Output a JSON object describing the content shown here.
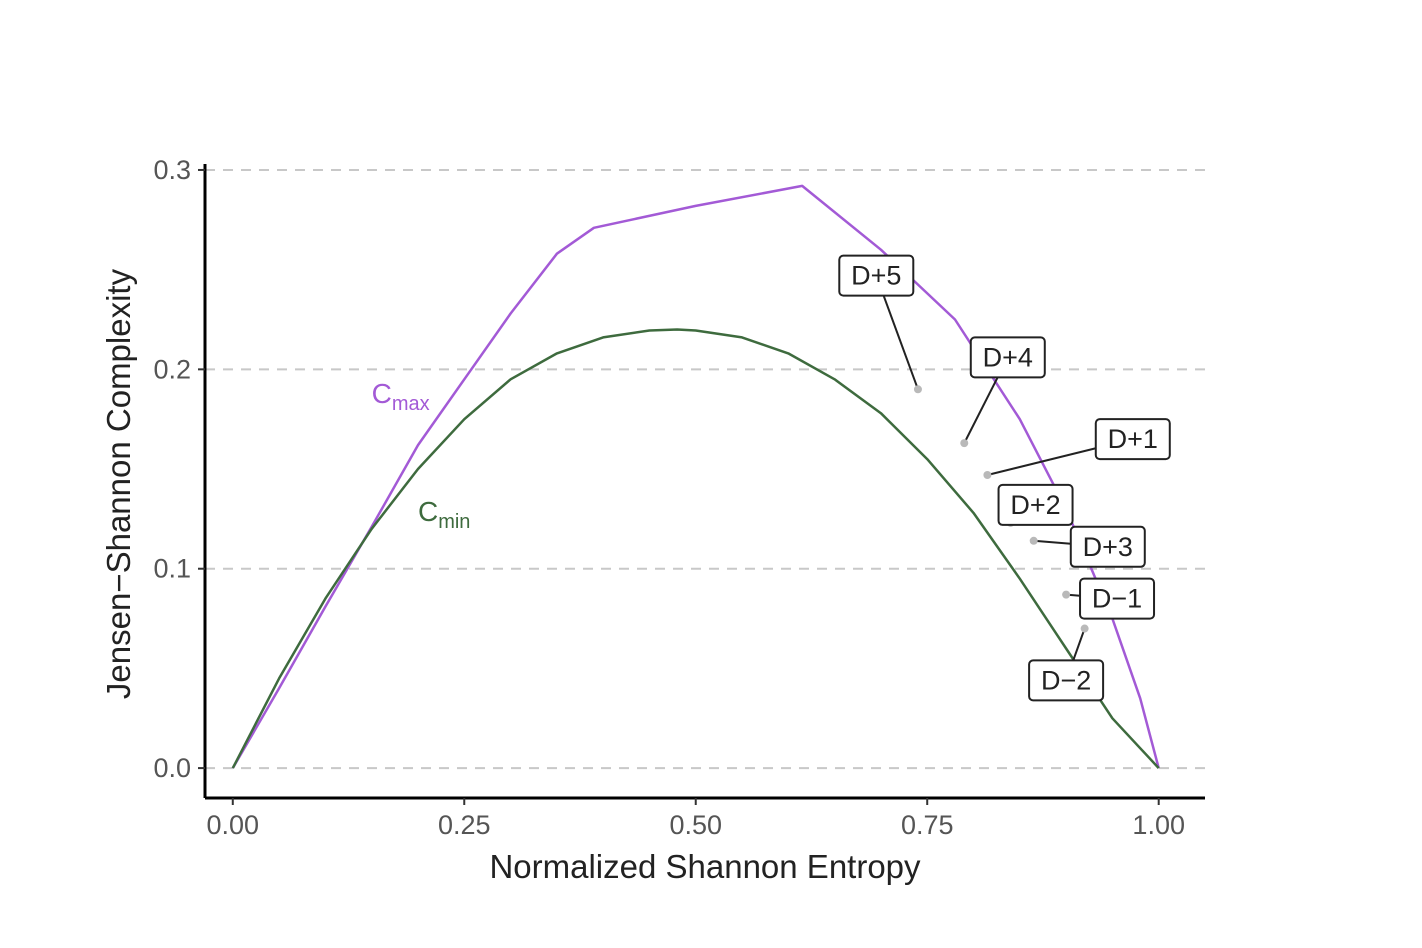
{
  "chart_data": {
    "type": "line",
    "xlabel": "Normalized Shannon Entropy",
    "ylabel": "Jensen−Shannon Complexity",
    "xlim": [
      -0.03,
      1.05
    ],
    "ylim": [
      -0.015,
      0.305
    ],
    "x_ticks": [
      0,
      0.25,
      0.5,
      0.75,
      1.0
    ],
    "x_tick_labels": [
      "0.00",
      "0.25",
      "0.50",
      "0.75",
      "1.00"
    ],
    "y_ticks": [
      0,
      0.1,
      0.2,
      0.3
    ],
    "y_tick_labels": [
      "0.0",
      "0.1",
      "0.2",
      "0.3"
    ],
    "grid": "horizontal dashed",
    "colors": {
      "cmax": "#a35ad6",
      "cmin": "#3e6b3e",
      "grid": "#c8c8c8",
      "axis": "#000000",
      "points": "#b9b9b9"
    },
    "series": [
      {
        "key": "cmax",
        "label_main": "C",
        "label_sub": "max",
        "label_at": [
          0.15,
          0.183
        ],
        "x": [
          0.0,
          0.05,
          0.1,
          0.15,
          0.2,
          0.25,
          0.3,
          0.35,
          0.39,
          0.5,
          0.615,
          0.7,
          0.78,
          0.85,
          0.9,
          0.95,
          0.98,
          1.0
        ],
        "y": [
          0.0,
          0.04,
          0.081,
          0.121,
          0.162,
          0.195,
          0.228,
          0.258,
          0.271,
          0.282,
          0.292,
          0.26,
          0.225,
          0.175,
          0.13,
          0.075,
          0.035,
          0.0
        ]
      },
      {
        "key": "cmin",
        "label_main": "C",
        "label_sub": "min",
        "label_at": [
          0.2,
          0.124
        ],
        "x": [
          0.0,
          0.05,
          0.1,
          0.15,
          0.2,
          0.25,
          0.3,
          0.35,
          0.4,
          0.45,
          0.48,
          0.5,
          0.55,
          0.6,
          0.65,
          0.7,
          0.75,
          0.8,
          0.85,
          0.9,
          0.95,
          1.0
        ],
        "y": [
          0.0,
          0.045,
          0.085,
          0.12,
          0.15,
          0.175,
          0.195,
          0.208,
          0.216,
          0.2195,
          0.22,
          0.2195,
          0.216,
          0.208,
          0.195,
          0.178,
          0.155,
          0.128,
          0.095,
          0.06,
          0.025,
          0.0
        ]
      }
    ],
    "points": [
      {
        "label": "D+5",
        "x": 0.74,
        "y": 0.19,
        "label_x": 0.695,
        "label_y": 0.247
      },
      {
        "label": "D+4",
        "x": 0.79,
        "y": 0.163,
        "label_x": 0.837,
        "label_y": 0.206
      },
      {
        "label": "D+1",
        "x": 0.815,
        "y": 0.147,
        "label_x": 0.972,
        "label_y": 0.165
      },
      {
        "label": "D+2",
        "x": 0.84,
        "y": 0.123,
        "label_x": 0.867,
        "label_y": 0.132
      },
      {
        "label": "D+3",
        "x": 0.865,
        "y": 0.114,
        "label_x": 0.945,
        "label_y": 0.111
      },
      {
        "label": "D−1",
        "x": 0.9,
        "y": 0.087,
        "label_x": 0.955,
        "label_y": 0.085
      },
      {
        "label": "D−2",
        "x": 0.92,
        "y": 0.07,
        "label_x": 0.9,
        "label_y": 0.044
      }
    ]
  }
}
